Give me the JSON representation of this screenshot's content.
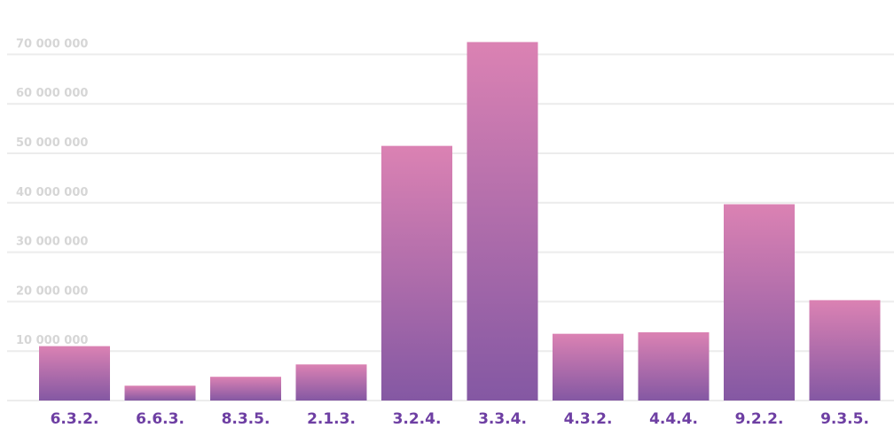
{
  "chart_data": {
    "type": "bar",
    "categories": [
      "6.3.2.",
      "6.6.3.",
      "8.3.5.",
      "2.1.3.",
      "3.2.4.",
      "3.3.4.",
      "4.3.2.",
      "4.4.4.",
      "9.2.2.",
      "9.3.5."
    ],
    "values": [
      11000000,
      3000000,
      4800000,
      7300000,
      51500000,
      72500000,
      13500000,
      13800000,
      39700000,
      20300000
    ],
    "yticks": [
      "10 000 000",
      "20 000 000",
      "30 000 000",
      "40 000 000",
      "50 000 000",
      "60 000 000",
      "70 000 000"
    ],
    "ylim": [
      0,
      80000000
    ],
    "grid": true,
    "colors": {
      "bar_top": "#db82b3",
      "bar_bottom": "#8458a3",
      "xtick": "#6e3fa3",
      "ytick": "#d6d6d6",
      "grid": "#ececec"
    }
  }
}
